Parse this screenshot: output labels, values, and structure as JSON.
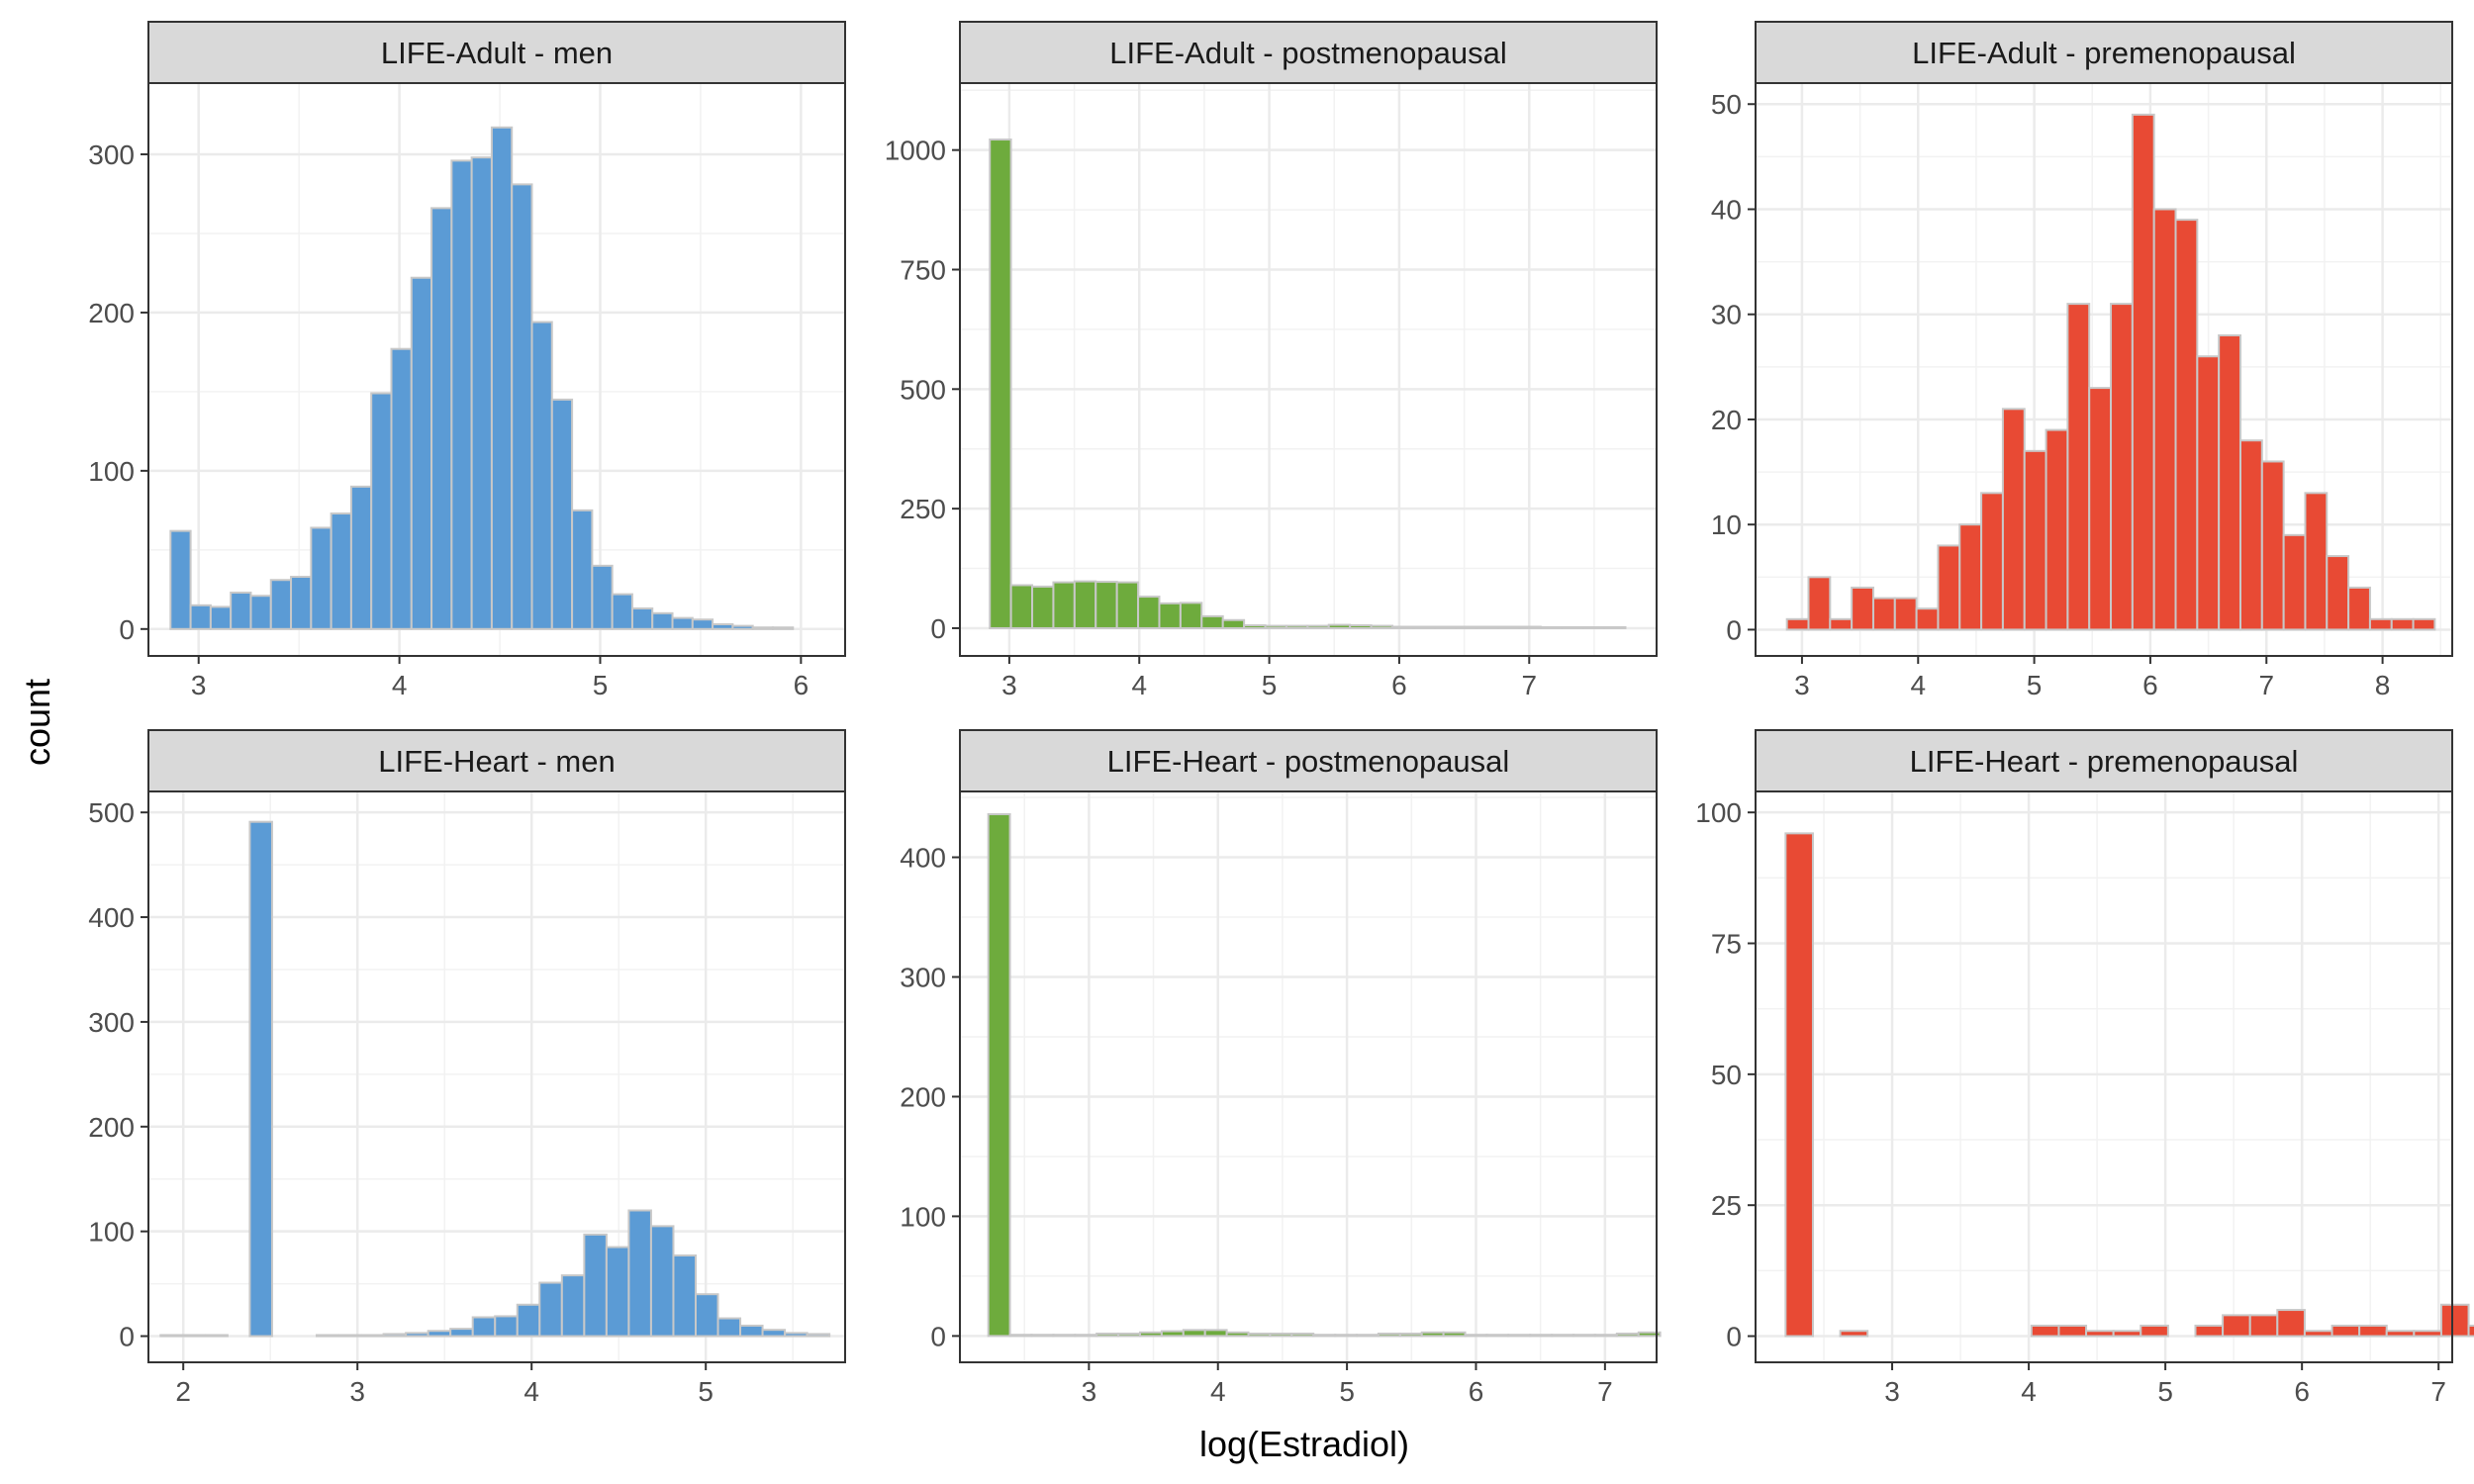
{
  "figure": {
    "xlabel": "log(Estradiol)",
    "ylabel": "count"
  },
  "chart_data": [
    {
      "type": "bar",
      "title": "LIFE-Adult - men",
      "color": "#5b9bd5",
      "x_start": 2.86,
      "bin_width": 0.1,
      "xlim": [
        2.75,
        6.22
      ],
      "ylim": [
        -17,
        345
      ],
      "xticks": [
        3,
        4,
        5,
        6
      ],
      "yticks": [
        0,
        100,
        200,
        300
      ],
      "values": [
        62,
        15,
        14,
        23,
        21,
        31,
        33,
        64,
        73,
        90,
        149,
        177,
        222,
        266,
        296,
        298,
        317,
        281,
        194,
        145,
        75,
        40,
        22,
        13,
        10,
        7,
        6,
        3,
        2,
        1,
        1
      ]
    },
    {
      "type": "bar",
      "title": "LIFE-Adult - postmenopausal",
      "color": "#6eab3d",
      "x_start": 2.85,
      "bin_width": 0.163,
      "xlim": [
        2.62,
        7.98
      ],
      "ylim": [
        -58,
        1140
      ],
      "xticks": [
        3,
        4,
        5,
        6,
        7
      ],
      "yticks": [
        0,
        250,
        500,
        750,
        1000
      ],
      "values": [
        1022,
        90,
        87,
        96,
        98,
        97,
        96,
        66,
        52,
        53,
        25,
        17,
        6,
        5,
        5,
        5,
        7,
        6,
        5,
        3,
        3,
        3,
        3,
        3,
        3,
        3,
        2,
        2,
        2,
        2
      ]
    },
    {
      "type": "bar",
      "title": "LIFE-Adult - premenopausal",
      "color": "#e84a34",
      "x_start": 2.87,
      "bin_width": 0.186,
      "xlim": [
        2.6,
        8.6
      ],
      "ylim": [
        -2.5,
        52
      ],
      "xticks": [
        3,
        4,
        5,
        6,
        7,
        8
      ],
      "yticks": [
        0,
        10,
        20,
        30,
        40,
        50
      ],
      "values": [
        1,
        5,
        1,
        4,
        3,
        3,
        2,
        8,
        10,
        13,
        21,
        17,
        19,
        31,
        23,
        31,
        49,
        40,
        39,
        26,
        28,
        18,
        16,
        9,
        13,
        7,
        4,
        1,
        1,
        1
      ]
    },
    {
      "type": "bar",
      "title": "LIFE-Heart - men",
      "color": "#5b9bd5",
      "x_start": 1.87,
      "bin_width": 0.128,
      "xlim": [
        1.8,
        5.8
      ],
      "ylim": [
        -25,
        520
      ],
      "xticks": [
        2,
        3,
        4,
        5
      ],
      "yticks": [
        0,
        100,
        200,
        300,
        400,
        500
      ],
      "values": [
        1,
        1,
        1,
        0,
        491,
        0,
        0,
        1,
        1,
        1,
        2,
        3,
        5,
        7,
        18,
        19,
        30,
        51,
        58,
        97,
        85,
        120,
        105,
        77,
        40,
        17,
        10,
        6,
        3,
        2
      ]
    },
    {
      "type": "bar",
      "title": "LIFE-Heart - postmenopausal",
      "color": "#6eab3d",
      "x_start": 2.22,
      "bin_width": 0.168,
      "xlim": [
        2.0,
        7.4
      ],
      "ylim": [
        -22,
        455
      ],
      "xticks": [
        3,
        4,
        5,
        6,
        7
      ],
      "yticks": [
        0,
        100,
        200,
        300,
        400
      ],
      "values": [
        436,
        1,
        1,
        1,
        1,
        2,
        2,
        3,
        4,
        5,
        5,
        3,
        2,
        2,
        2,
        1,
        1,
        1,
        2,
        2,
        3,
        3,
        1,
        1,
        1,
        1,
        1,
        1,
        1,
        2,
        3
      ]
    },
    {
      "type": "bar",
      "title": "LIFE-Heart - premenopausal",
      "color": "#e84a34",
      "x_start": 2.22,
      "bin_width": 0.2,
      "xlim": [
        2.0,
        7.1
      ],
      "ylim": [
        -5,
        104
      ],
      "xticks": [
        3,
        4,
        5,
        6,
        7
      ],
      "yticks": [
        0,
        25,
        50,
        75,
        100
      ],
      "values": [
        96,
        0,
        1,
        0,
        0,
        0,
        0,
        0,
        0,
        2,
        2,
        1,
        1,
        2,
        0,
        2,
        4,
        4,
        5,
        1,
        2,
        2,
        1,
        1,
        6,
        2,
        3,
        3,
        3
      ]
    }
  ]
}
